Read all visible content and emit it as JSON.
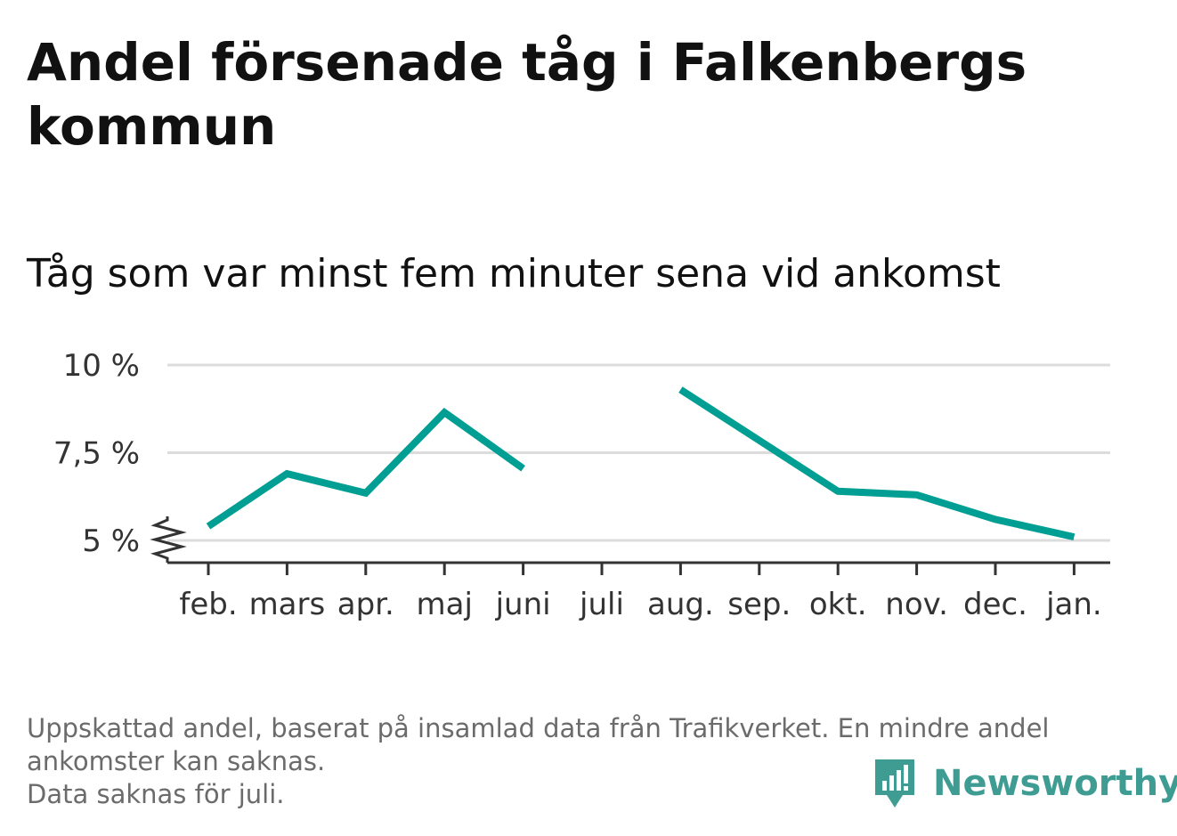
{
  "header": {
    "title": "Andel försenade tåg i Falkenbergs kommun",
    "subtitle": "Tåg som var minst fem minuter sena vid ankomst"
  },
  "chart_data": {
    "type": "line",
    "categories": [
      "feb.",
      "mars",
      "apr.",
      "maj",
      "juni",
      "juli",
      "aug.",
      "sep.",
      "okt.",
      "nov.",
      "dec.",
      "jan."
    ],
    "series": [
      {
        "values": [
          5.4,
          6.9,
          6.35,
          8.65,
          7.05,
          null,
          9.3,
          7.85,
          6.4,
          6.3,
          5.6,
          5.1
        ]
      }
    ],
    "ylim": [
      4.4,
      10
    ],
    "y_ticks": [
      5,
      7.5,
      10
    ],
    "y_tick_labels": [
      "5 %",
      "7,5 %",
      "10 %"
    ],
    "y_axis_break": true,
    "grid": true,
    "legend": "none",
    "line_color": "#009e93",
    "grid_color": "#dcdcdc",
    "axis_color": "#333333"
  },
  "footnote": {
    "line1": "Uppskattad andel, baserat på insamlad data från Trafikverket. En mindre andel",
    "line2": "ankomster kan saknas.",
    "line3": "Data saknas för juli."
  },
  "brand": {
    "name": "Newsworthy",
    "color": "#3e9c93",
    "icon": "newsworthy-logo-icon"
  }
}
